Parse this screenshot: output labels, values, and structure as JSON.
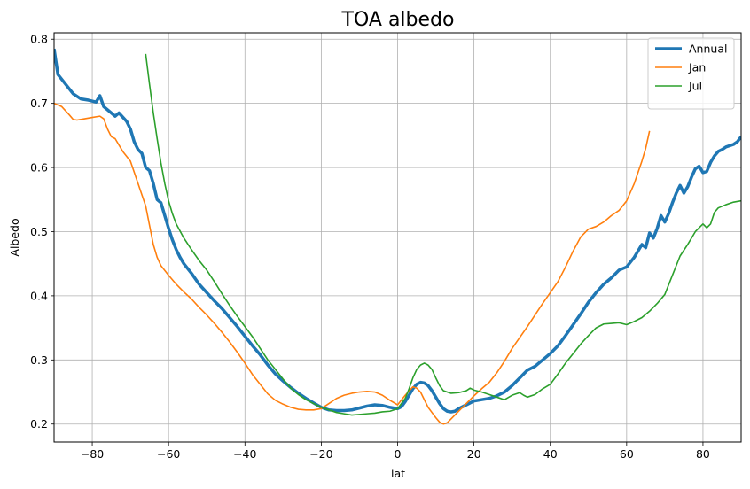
{
  "chart_data": {
    "type": "line",
    "title": "TOA albedo",
    "xlabel": "lat",
    "ylabel": "Albedo",
    "xlim": [
      -90,
      90
    ],
    "ylim": [
      0.172,
      0.81
    ],
    "xticks": [
      -80,
      -60,
      -40,
      -20,
      0,
      20,
      40,
      60,
      80
    ],
    "yticks": [
      0.2,
      0.3,
      0.4,
      0.5,
      0.6,
      0.7,
      0.8
    ],
    "grid": true,
    "legend_position": "top-right",
    "series": [
      {
        "name": "Annual",
        "color": "#1f77b4",
        "width": 3.5,
        "points": [
          [
            -90,
            0.785
          ],
          [
            -89,
            0.745
          ],
          [
            -87,
            0.73
          ],
          [
            -85,
            0.715
          ],
          [
            -83,
            0.707
          ],
          [
            -81,
            0.705
          ],
          [
            -79,
            0.702
          ],
          [
            -78,
            0.712
          ],
          [
            -77,
            0.695
          ],
          [
            -75,
            0.685
          ],
          [
            -74,
            0.68
          ],
          [
            -73,
            0.685
          ],
          [
            -71,
            0.672
          ],
          [
            -70,
            0.66
          ],
          [
            -69,
            0.64
          ],
          [
            -68,
            0.628
          ],
          [
            -67,
            0.622
          ],
          [
            -66,
            0.6
          ],
          [
            -65,
            0.595
          ],
          [
            -64,
            0.575
          ],
          [
            -63,
            0.55
          ],
          [
            -62,
            0.545
          ],
          [
            -61,
            0.525
          ],
          [
            -60,
            0.505
          ],
          [
            -59,
            0.487
          ],
          [
            -58,
            0.472
          ],
          [
            -57,
            0.46
          ],
          [
            -56,
            0.45
          ],
          [
            -54,
            0.435
          ],
          [
            -52,
            0.418
          ],
          [
            -50,
            0.405
          ],
          [
            -48,
            0.392
          ],
          [
            -46,
            0.38
          ],
          [
            -44,
            0.366
          ],
          [
            -42,
            0.352
          ],
          [
            -40,
            0.337
          ],
          [
            -38,
            0.322
          ],
          [
            -36,
            0.308
          ],
          [
            -34,
            0.292
          ],
          [
            -32,
            0.278
          ],
          [
            -30,
            0.267
          ],
          [
            -28,
            0.257
          ],
          [
            -26,
            0.248
          ],
          [
            -24,
            0.24
          ],
          [
            -22,
            0.233
          ],
          [
            -20,
            0.226
          ],
          [
            -18,
            0.222
          ],
          [
            -16,
            0.221
          ],
          [
            -14,
            0.221
          ],
          [
            -12,
            0.222
          ],
          [
            -10,
            0.225
          ],
          [
            -8,
            0.228
          ],
          [
            -6,
            0.23
          ],
          [
            -4,
            0.229
          ],
          [
            -2,
            0.226
          ],
          [
            0,
            0.224
          ],
          [
            1,
            0.227
          ],
          [
            2,
            0.235
          ],
          [
            3,
            0.245
          ],
          [
            4,
            0.255
          ],
          [
            5,
            0.262
          ],
          [
            6,
            0.265
          ],
          [
            7,
            0.264
          ],
          [
            8,
            0.26
          ],
          [
            9,
            0.252
          ],
          [
            10,
            0.242
          ],
          [
            11,
            0.232
          ],
          [
            12,
            0.224
          ],
          [
            13,
            0.22
          ],
          [
            14,
            0.219
          ],
          [
            15,
            0.22
          ],
          [
            16,
            0.224
          ],
          [
            18,
            0.23
          ],
          [
            20,
            0.236
          ],
          [
            22,
            0.238
          ],
          [
            24,
            0.24
          ],
          [
            26,
            0.244
          ],
          [
            28,
            0.25
          ],
          [
            30,
            0.26
          ],
          [
            32,
            0.272
          ],
          [
            34,
            0.284
          ],
          [
            36,
            0.29
          ],
          [
            38,
            0.3
          ],
          [
            40,
            0.31
          ],
          [
            42,
            0.322
          ],
          [
            44,
            0.338
          ],
          [
            46,
            0.355
          ],
          [
            48,
            0.372
          ],
          [
            50,
            0.39
          ],
          [
            52,
            0.405
          ],
          [
            54,
            0.418
          ],
          [
            56,
            0.428
          ],
          [
            58,
            0.44
          ],
          [
            60,
            0.445
          ],
          [
            62,
            0.46
          ],
          [
            64,
            0.48
          ],
          [
            65,
            0.475
          ],
          [
            66,
            0.498
          ],
          [
            67,
            0.49
          ],
          [
            68,
            0.505
          ],
          [
            69,
            0.525
          ],
          [
            70,
            0.515
          ],
          [
            71,
            0.528
          ],
          [
            72,
            0.545
          ],
          [
            73,
            0.56
          ],
          [
            74,
            0.572
          ],
          [
            75,
            0.56
          ],
          [
            76,
            0.57
          ],
          [
            77,
            0.585
          ],
          [
            78,
            0.598
          ],
          [
            79,
            0.602
          ],
          [
            80,
            0.592
          ],
          [
            81,
            0.594
          ],
          [
            82,
            0.608
          ],
          [
            83,
            0.618
          ],
          [
            84,
            0.625
          ],
          [
            85,
            0.628
          ],
          [
            86,
            0.632
          ],
          [
            87,
            0.634
          ],
          [
            88,
            0.636
          ],
          [
            89,
            0.64
          ],
          [
            90,
            0.648
          ]
        ]
      },
      {
        "name": "Jan",
        "color": "#ff7f0e",
        "width": 1.6,
        "points": [
          [
            -90,
            0.7
          ],
          [
            -88,
            0.695
          ],
          [
            -86,
            0.682
          ],
          [
            -85,
            0.675
          ],
          [
            -84,
            0.674
          ],
          [
            -82,
            0.676
          ],
          [
            -80,
            0.678
          ],
          [
            -78,
            0.68
          ],
          [
            -77,
            0.676
          ],
          [
            -76,
            0.66
          ],
          [
            -75,
            0.648
          ],
          [
            -74,
            0.645
          ],
          [
            -72,
            0.625
          ],
          [
            -70,
            0.61
          ],
          [
            -68,
            0.575
          ],
          [
            -66,
            0.54
          ],
          [
            -65,
            0.51
          ],
          [
            -64,
            0.48
          ],
          [
            -63,
            0.46
          ],
          [
            -62,
            0.447
          ],
          [
            -60,
            0.432
          ],
          [
            -58,
            0.418
          ],
          [
            -56,
            0.406
          ],
          [
            -54,
            0.395
          ],
          [
            -52,
            0.382
          ],
          [
            -50,
            0.37
          ],
          [
            -48,
            0.357
          ],
          [
            -46,
            0.343
          ],
          [
            -44,
            0.328
          ],
          [
            -42,
            0.312
          ],
          [
            -40,
            0.295
          ],
          [
            -38,
            0.277
          ],
          [
            -36,
            0.262
          ],
          [
            -34,
            0.247
          ],
          [
            -32,
            0.237
          ],
          [
            -30,
            0.231
          ],
          [
            -28,
            0.226
          ],
          [
            -26,
            0.223
          ],
          [
            -24,
            0.222
          ],
          [
            -22,
            0.222
          ],
          [
            -20,
            0.224
          ],
          [
            -18,
            0.232
          ],
          [
            -16,
            0.24
          ],
          [
            -14,
            0.245
          ],
          [
            -12,
            0.248
          ],
          [
            -10,
            0.25
          ],
          [
            -8,
            0.251
          ],
          [
            -6,
            0.25
          ],
          [
            -4,
            0.245
          ],
          [
            -2,
            0.237
          ],
          [
            0,
            0.23
          ],
          [
            2,
            0.245
          ],
          [
            4,
            0.258
          ],
          [
            5,
            0.256
          ],
          [
            6,
            0.25
          ],
          [
            7,
            0.238
          ],
          [
            8,
            0.226
          ],
          [
            9,
            0.218
          ],
          [
            10,
            0.21
          ],
          [
            11,
            0.203
          ],
          [
            12,
            0.2
          ],
          [
            13,
            0.202
          ],
          [
            14,
            0.208
          ],
          [
            16,
            0.22
          ],
          [
            18,
            0.232
          ],
          [
            20,
            0.244
          ],
          [
            22,
            0.255
          ],
          [
            24,
            0.265
          ],
          [
            26,
            0.28
          ],
          [
            28,
            0.298
          ],
          [
            30,
            0.318
          ],
          [
            32,
            0.335
          ],
          [
            34,
            0.352
          ],
          [
            36,
            0.37
          ],
          [
            38,
            0.388
          ],
          [
            40,
            0.405
          ],
          [
            42,
            0.422
          ],
          [
            44,
            0.445
          ],
          [
            46,
            0.47
          ],
          [
            48,
            0.492
          ],
          [
            50,
            0.504
          ],
          [
            52,
            0.508
          ],
          [
            54,
            0.515
          ],
          [
            56,
            0.525
          ],
          [
            58,
            0.533
          ],
          [
            60,
            0.548
          ],
          [
            62,
            0.575
          ],
          [
            64,
            0.61
          ],
          [
            65,
            0.63
          ],
          [
            66,
            0.657
          ]
        ]
      },
      {
        "name": "Jul",
        "color": "#2ca02c",
        "width": 1.6,
        "points": [
          [
            -66,
            0.777
          ],
          [
            -65,
            0.73
          ],
          [
            -64,
            0.685
          ],
          [
            -63,
            0.645
          ],
          [
            -62,
            0.607
          ],
          [
            -61,
            0.575
          ],
          [
            -60,
            0.548
          ],
          [
            -59,
            0.528
          ],
          [
            -58,
            0.512
          ],
          [
            -56,
            0.49
          ],
          [
            -54,
            0.472
          ],
          [
            -52,
            0.455
          ],
          [
            -50,
            0.44
          ],
          [
            -48,
            0.422
          ],
          [
            -46,
            0.403
          ],
          [
            -44,
            0.385
          ],
          [
            -42,
            0.368
          ],
          [
            -40,
            0.352
          ],
          [
            -38,
            0.336
          ],
          [
            -36,
            0.318
          ],
          [
            -34,
            0.3
          ],
          [
            -32,
            0.285
          ],
          [
            -30,
            0.27
          ],
          [
            -28,
            0.256
          ],
          [
            -26,
            0.246
          ],
          [
            -24,
            0.238
          ],
          [
            -22,
            0.232
          ],
          [
            -20,
            0.226
          ],
          [
            -18,
            0.222
          ],
          [
            -16,
            0.218
          ],
          [
            -14,
            0.216
          ],
          [
            -12,
            0.214
          ],
          [
            -10,
            0.215
          ],
          [
            -8,
            0.216
          ],
          [
            -6,
            0.217
          ],
          [
            -4,
            0.219
          ],
          [
            -2,
            0.22
          ],
          [
            0,
            0.224
          ],
          [
            2,
            0.24
          ],
          [
            3,
            0.255
          ],
          [
            4,
            0.272
          ],
          [
            5,
            0.285
          ],
          [
            6,
            0.292
          ],
          [
            7,
            0.295
          ],
          [
            8,
            0.292
          ],
          [
            9,
            0.285
          ],
          [
            10,
            0.272
          ],
          [
            11,
            0.26
          ],
          [
            12,
            0.252
          ],
          [
            14,
            0.248
          ],
          [
            16,
            0.249
          ],
          [
            18,
            0.252
          ],
          [
            19,
            0.256
          ],
          [
            20,
            0.253
          ],
          [
            22,
            0.25
          ],
          [
            24,
            0.246
          ],
          [
            26,
            0.242
          ],
          [
            28,
            0.238
          ],
          [
            30,
            0.245
          ],
          [
            32,
            0.249
          ],
          [
            33,
            0.245
          ],
          [
            34,
            0.242
          ],
          [
            36,
            0.246
          ],
          [
            38,
            0.255
          ],
          [
            40,
            0.262
          ],
          [
            42,
            0.278
          ],
          [
            44,
            0.295
          ],
          [
            46,
            0.31
          ],
          [
            48,
            0.325
          ],
          [
            50,
            0.338
          ],
          [
            52,
            0.35
          ],
          [
            54,
            0.356
          ],
          [
            56,
            0.357
          ],
          [
            58,
            0.358
          ],
          [
            60,
            0.355
          ],
          [
            62,
            0.36
          ],
          [
            64,
            0.366
          ],
          [
            66,
            0.376
          ],
          [
            68,
            0.388
          ],
          [
            70,
            0.402
          ],
          [
            72,
            0.432
          ],
          [
            74,
            0.462
          ],
          [
            76,
            0.48
          ],
          [
            78,
            0.5
          ],
          [
            80,
            0.512
          ],
          [
            81,
            0.506
          ],
          [
            82,
            0.512
          ],
          [
            83,
            0.53
          ],
          [
            84,
            0.537
          ],
          [
            86,
            0.542
          ],
          [
            88,
            0.546
          ],
          [
            90,
            0.548
          ]
        ]
      }
    ]
  }
}
